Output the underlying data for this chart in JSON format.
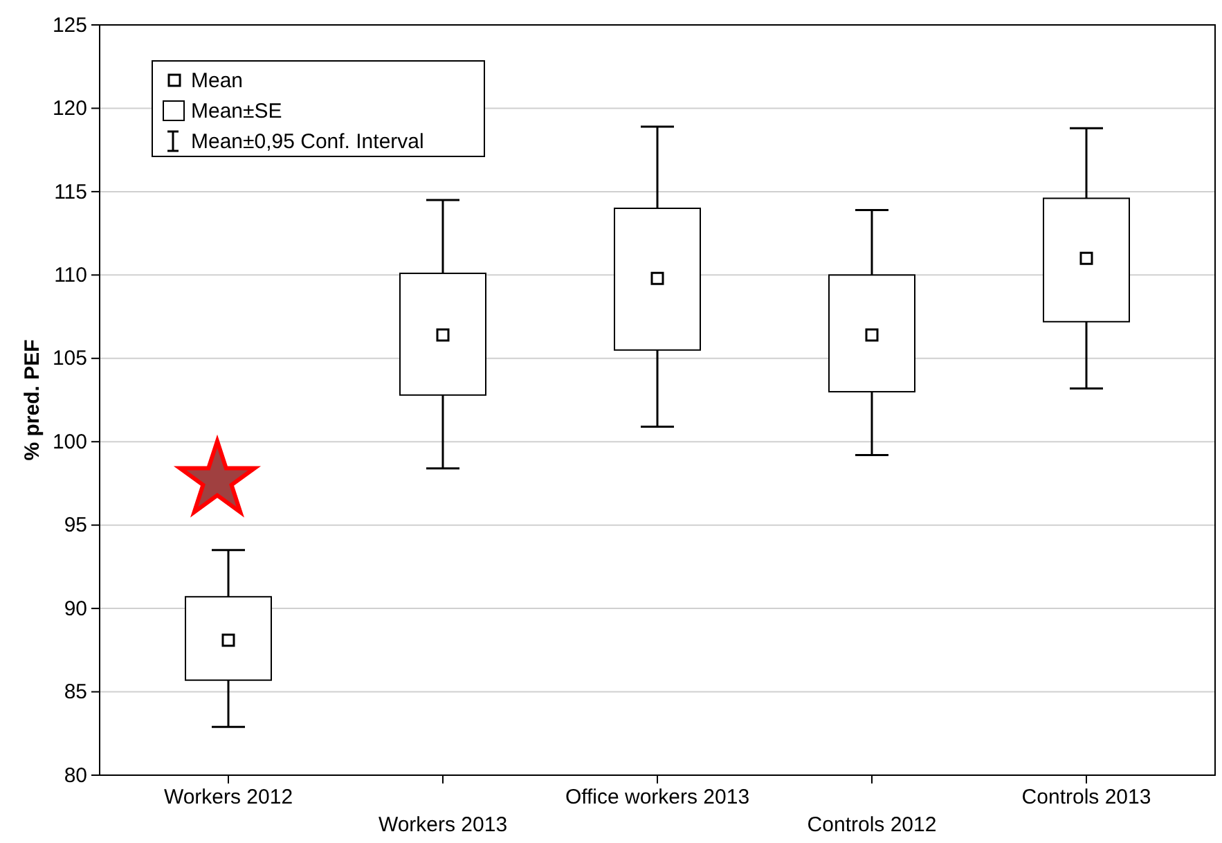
{
  "chart_data": {
    "type": "box",
    "ylabel": "% pred. PEF",
    "categories": [
      "Workers 2012",
      "Workers 2013",
      "Office workers 2013",
      "Controls 2012",
      "Controls 2013"
    ],
    "boxes": [
      {
        "low": 82.9,
        "q1": 85.7,
        "median": 88.1,
        "q3": 90.7,
        "high": 93.5
      },
      {
        "low": 98.4,
        "q1": 102.8,
        "median": 106.4,
        "q3": 110.1,
        "high": 114.5
      },
      {
        "low": 100.9,
        "q1": 105.5,
        "median": 109.8,
        "q3": 114.0,
        "high": 118.9
      },
      {
        "low": 99.2,
        "q1": 103.0,
        "median": 106.4,
        "q3": 110.0,
        "high": 113.9
      },
      {
        "low": 103.2,
        "q1": 107.2,
        "median": 111.0,
        "q3": 114.6,
        "high": 118.8
      }
    ],
    "ylim": [
      80,
      125
    ],
    "yticks": [
      80,
      85,
      90,
      95,
      100,
      105,
      110,
      115,
      120,
      125
    ],
    "grid": "y",
    "marker": "square",
    "annotations": [
      "Mean",
      "Mean±SE",
      "Mean±0,95 Conf. Interval"
    ]
  }
}
